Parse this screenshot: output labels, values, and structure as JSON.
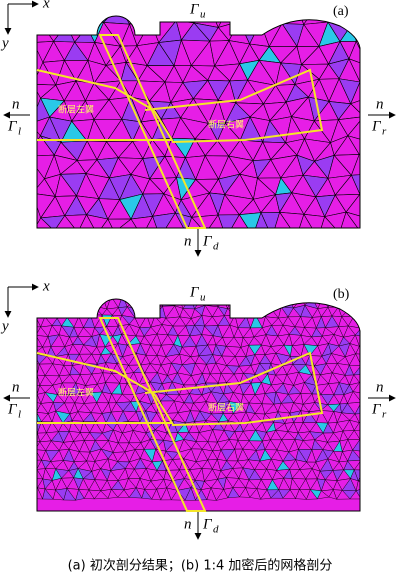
{
  "panels": [
    {
      "tag": "(a)",
      "axes": {
        "x": "x",
        "y": "y"
      },
      "boundaries": {
        "top": {
          "symbol": "Γ",
          "sub": "u"
        },
        "left": {
          "normal": "n",
          "symbol": "Γ",
          "sub": "l"
        },
        "right": {
          "normal": "n",
          "symbol": "Γ",
          "sub": "r"
        },
        "bottom": {
          "normal": "n",
          "symbol": "Γ",
          "sub": "d"
        }
      },
      "regions": {
        "left_wing": "断层左翼",
        "right_wing": "断层右翼"
      }
    },
    {
      "tag": "(b)",
      "axes": {
        "x": "x",
        "y": "y"
      },
      "boundaries": {
        "top": {
          "symbol": "Γ",
          "sub": "u"
        },
        "left": {
          "normal": "n",
          "symbol": "Γ",
          "sub": "l"
        },
        "right": {
          "normal": "n",
          "symbol": "Γ",
          "sub": "r"
        },
        "bottom": {
          "normal": "n",
          "symbol": "Γ",
          "sub": "d"
        }
      },
      "regions": {
        "left_wing": "断层左翼",
        "right_wing": "断层右翼"
      }
    }
  ],
  "caption": "(a) 初次剖分结果；(b) 1:4 加密后的网格剖分"
}
